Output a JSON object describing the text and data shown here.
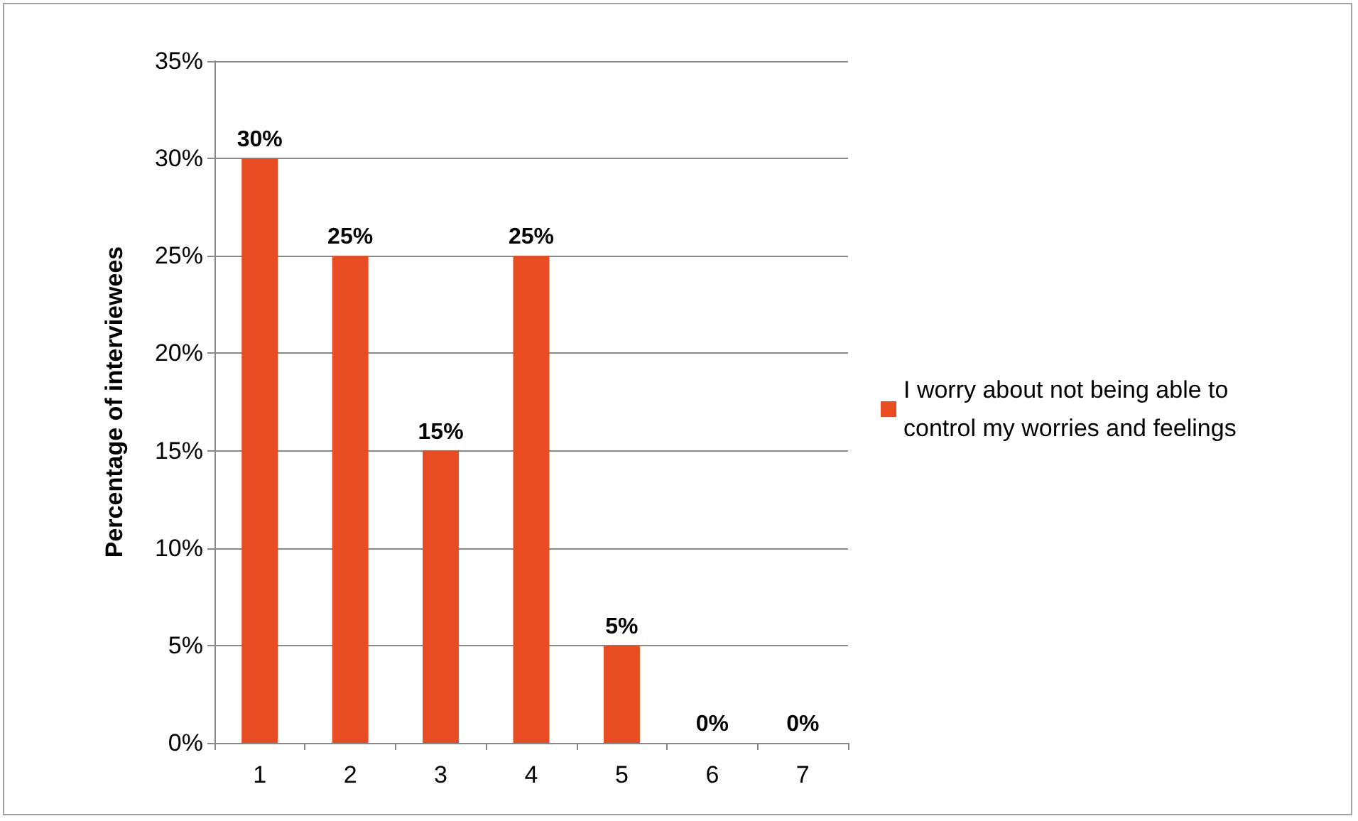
{
  "chart_data": {
    "type": "bar",
    "ylabel": "Percentage of interviewees",
    "categories": [
      "1",
      "2",
      "3",
      "4",
      "5",
      "6",
      "7"
    ],
    "series": [
      {
        "name": "I worry about not being able to control my worries and feelings",
        "color": "#e84c22",
        "values": [
          30,
          25,
          15,
          25,
          5,
          0,
          0
        ],
        "value_labels": [
          "30%",
          "25%",
          "15%",
          "25%",
          "5%",
          "0%",
          "0%"
        ]
      }
    ],
    "ylim": [
      0,
      35
    ],
    "yticks": [
      {
        "value": 0,
        "label": "0%"
      },
      {
        "value": 5,
        "label": "5%"
      },
      {
        "value": 10,
        "label": "10%"
      },
      {
        "value": 15,
        "label": "15%"
      },
      {
        "value": 20,
        "label": "20%"
      },
      {
        "value": 25,
        "label": "25%"
      },
      {
        "value": 30,
        "label": "30%"
      },
      {
        "value": 35,
        "label": "35%"
      }
    ],
    "grid": "y",
    "legend": "right"
  }
}
